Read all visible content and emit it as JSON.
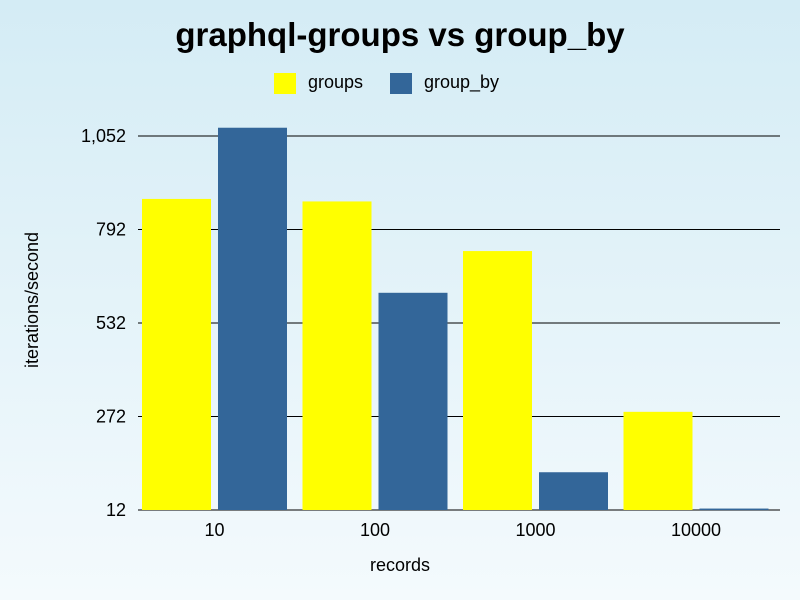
{
  "chart_data": {
    "type": "bar",
    "title": "graphql-groups vs group_by",
    "xlabel": "records",
    "ylabel": "iterations/second",
    "categories": [
      "10",
      "100",
      "1000",
      "10000"
    ],
    "series": [
      {
        "name": "groups",
        "color": "#ffff00",
        "values": [
          877,
          870,
          732,
          285
        ]
      },
      {
        "name": "group_by",
        "color": "#336699",
        "values": [
          1075,
          616,
          117,
          16
        ]
      }
    ],
    "yticks": [
      12,
      272,
      532,
      792,
      1052
    ],
    "ytick_labels": [
      "12",
      "272",
      "532",
      "792",
      "1,052"
    ],
    "ylim": [
      12,
      1052
    ],
    "grid": true,
    "legend_position": "top-center"
  }
}
